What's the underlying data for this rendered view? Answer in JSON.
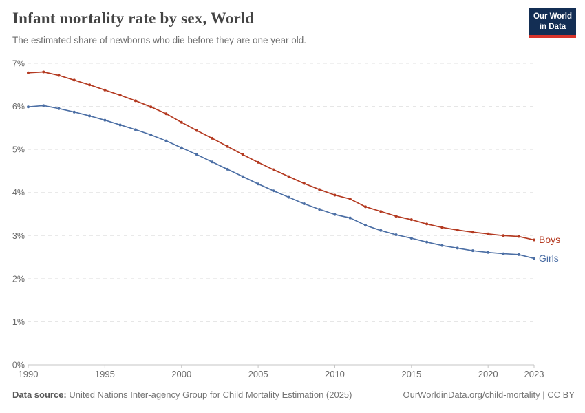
{
  "header": {
    "title": "Infant mortality rate by sex, World",
    "subtitle": "The estimated share of newborns who die before they are one year old.",
    "logo": {
      "line1": "Our World",
      "line2": "in Data",
      "bg_color": "#132e54",
      "accent_color": "#d8342b"
    }
  },
  "chart_data": {
    "type": "line",
    "title": "Infant mortality rate by sex, World",
    "subtitle": "The estimated share of newborns who die before they are one year old.",
    "xlabel": "",
    "ylabel": "",
    "ylim": [
      0,
      7
    ],
    "y_ticks": [
      0,
      1,
      2,
      3,
      4,
      5,
      6,
      7
    ],
    "y_tick_suffix": "%",
    "x_ticks": [
      1990,
      1995,
      2000,
      2005,
      2010,
      2015,
      2020,
      2023
    ],
    "grid": "horizontal-dashed",
    "legend_position": "end-of-line",
    "x": [
      1990,
      1991,
      1992,
      1993,
      1994,
      1995,
      1996,
      1997,
      1998,
      1999,
      2000,
      2001,
      2002,
      2003,
      2004,
      2005,
      2006,
      2007,
      2008,
      2009,
      2010,
      2011,
      2012,
      2013,
      2014,
      2015,
      2016,
      2017,
      2018,
      2019,
      2020,
      2021,
      2022,
      2023
    ],
    "series": [
      {
        "name": "Boys",
        "color": "#b43a21",
        "values": [
          6.78,
          6.8,
          6.72,
          6.61,
          6.5,
          6.38,
          6.26,
          6.13,
          5.99,
          5.83,
          5.63,
          5.44,
          5.26,
          5.07,
          4.88,
          4.7,
          4.53,
          4.37,
          4.21,
          4.07,
          3.94,
          3.85,
          3.67,
          3.56,
          3.45,
          3.37,
          3.27,
          3.19,
          3.13,
          3.08,
          3.04,
          3.0,
          2.98,
          2.9
        ]
      },
      {
        "name": "Girls",
        "color": "#4c6fa5",
        "values": [
          5.99,
          6.02,
          5.95,
          5.87,
          5.78,
          5.68,
          5.57,
          5.46,
          5.34,
          5.2,
          5.04,
          4.88,
          4.71,
          4.54,
          4.37,
          4.2,
          4.04,
          3.89,
          3.74,
          3.61,
          3.49,
          3.41,
          3.24,
          3.12,
          3.02,
          2.94,
          2.85,
          2.77,
          2.71,
          2.65,
          2.61,
          2.58,
          2.56,
          2.47
        ]
      }
    ],
    "colors": {
      "gridline": "#e2e2e2",
      "axis": "#c4c4c4",
      "tick_label": "#6b6b6b"
    }
  },
  "footer": {
    "source_label": "Data source:",
    "source_text": " United Nations Inter-agency Group for Child Mortality Estimation (2025)",
    "link_text": "OurWorldinData.org/child-mortality | CC BY"
  }
}
